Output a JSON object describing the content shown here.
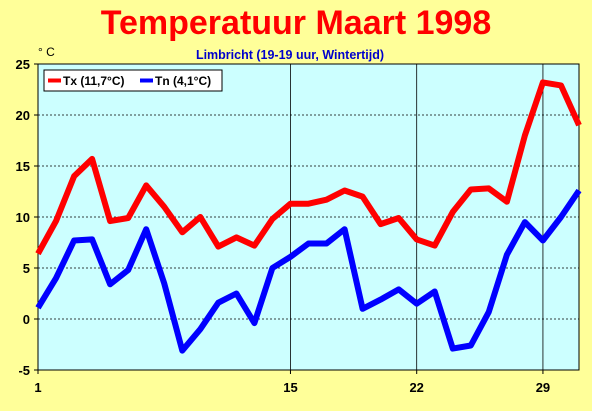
{
  "chart_data": {
    "type": "line",
    "title": "Temperatuur Maart 1998",
    "subtitle": "Limbricht (19-19 uur, Wintertijd)",
    "ylabel": "° C",
    "xlabel": "",
    "xlim": [
      1,
      31
    ],
    "ylim": [
      -5,
      25
    ],
    "x_ticks": [
      1,
      15,
      22,
      29
    ],
    "y_ticks": [
      -5,
      0,
      5,
      10,
      15,
      20,
      25
    ],
    "grid": true,
    "legend_position": "top-left",
    "colors": {
      "background": "#ffff99",
      "plot_background": "#ccffff",
      "title": "#ff0000",
      "subtitle": "#0000cc"
    },
    "x": [
      1,
      2,
      3,
      4,
      5,
      6,
      7,
      8,
      9,
      10,
      11,
      12,
      13,
      14,
      15,
      16,
      17,
      18,
      19,
      20,
      21,
      22,
      23,
      24,
      25,
      26,
      27,
      28,
      29,
      30,
      31
    ],
    "series": [
      {
        "name": "Tx (11,7°C)",
        "color": "#ff0000",
        "values": [
          6.4,
          9.6,
          14.0,
          15.7,
          9.6,
          9.9,
          13.1,
          11.0,
          8.5,
          10.0,
          7.1,
          8.0,
          7.2,
          9.8,
          11.3,
          11.3,
          11.7,
          12.6,
          12.0,
          9.3,
          9.9,
          7.8,
          7.2,
          10.5,
          12.7,
          12.8,
          11.5,
          18.0,
          23.2,
          22.9,
          19.0
        ]
      },
      {
        "name": "Tn (4,1°C)",
        "color": "#0000ff",
        "values": [
          1.1,
          4.0,
          7.7,
          7.8,
          3.4,
          4.8,
          8.8,
          3.5,
          -3.1,
          -1.0,
          1.6,
          2.5,
          -0.4,
          5.0,
          6.1,
          7.4,
          7.4,
          8.8,
          1.0,
          1.9,
          2.9,
          1.5,
          2.7,
          -2.9,
          -2.6,
          0.7,
          6.3,
          9.5,
          7.7,
          10.0,
          12.6
        ]
      }
    ]
  }
}
